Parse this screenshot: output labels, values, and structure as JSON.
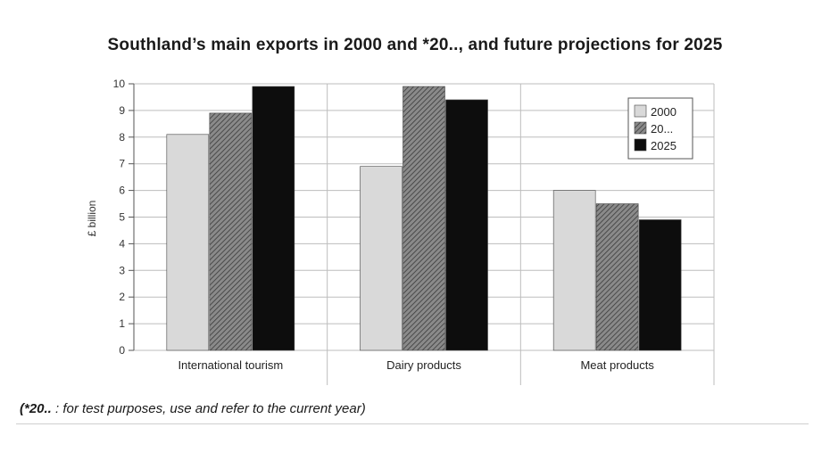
{
  "chart_data": {
    "type": "bar",
    "title": "Southland’s main exports in 2000 and *20.., and future projections for 2025",
    "ylabel": "£ billion",
    "xlabel": "",
    "ylim": [
      0,
      10
    ],
    "yticks": [
      0,
      1,
      2,
      3,
      4,
      5,
      6,
      7,
      8,
      9,
      10
    ],
    "categories": [
      "International tourism",
      "Dairy products",
      "Meat products"
    ],
    "series": [
      {
        "name": "2000",
        "values": [
          8.1,
          6.9,
          6.0
        ]
      },
      {
        "name": "20...",
        "values": [
          8.9,
          9.9,
          5.5
        ]
      },
      {
        "name": "2025",
        "values": [
          9.9,
          9.4,
          4.9
        ]
      }
    ],
    "grid": true,
    "legend": "top-right"
  },
  "footnote": {
    "marker": "(*20..",
    "text": " : for test purposes, use and refer to the current year)"
  },
  "colors": {
    "series_2000": "#d9d9d9",
    "series_20": "#7a7a7a",
    "series_2025": "#0d0d0d",
    "grid": "#bdbdbd"
  }
}
